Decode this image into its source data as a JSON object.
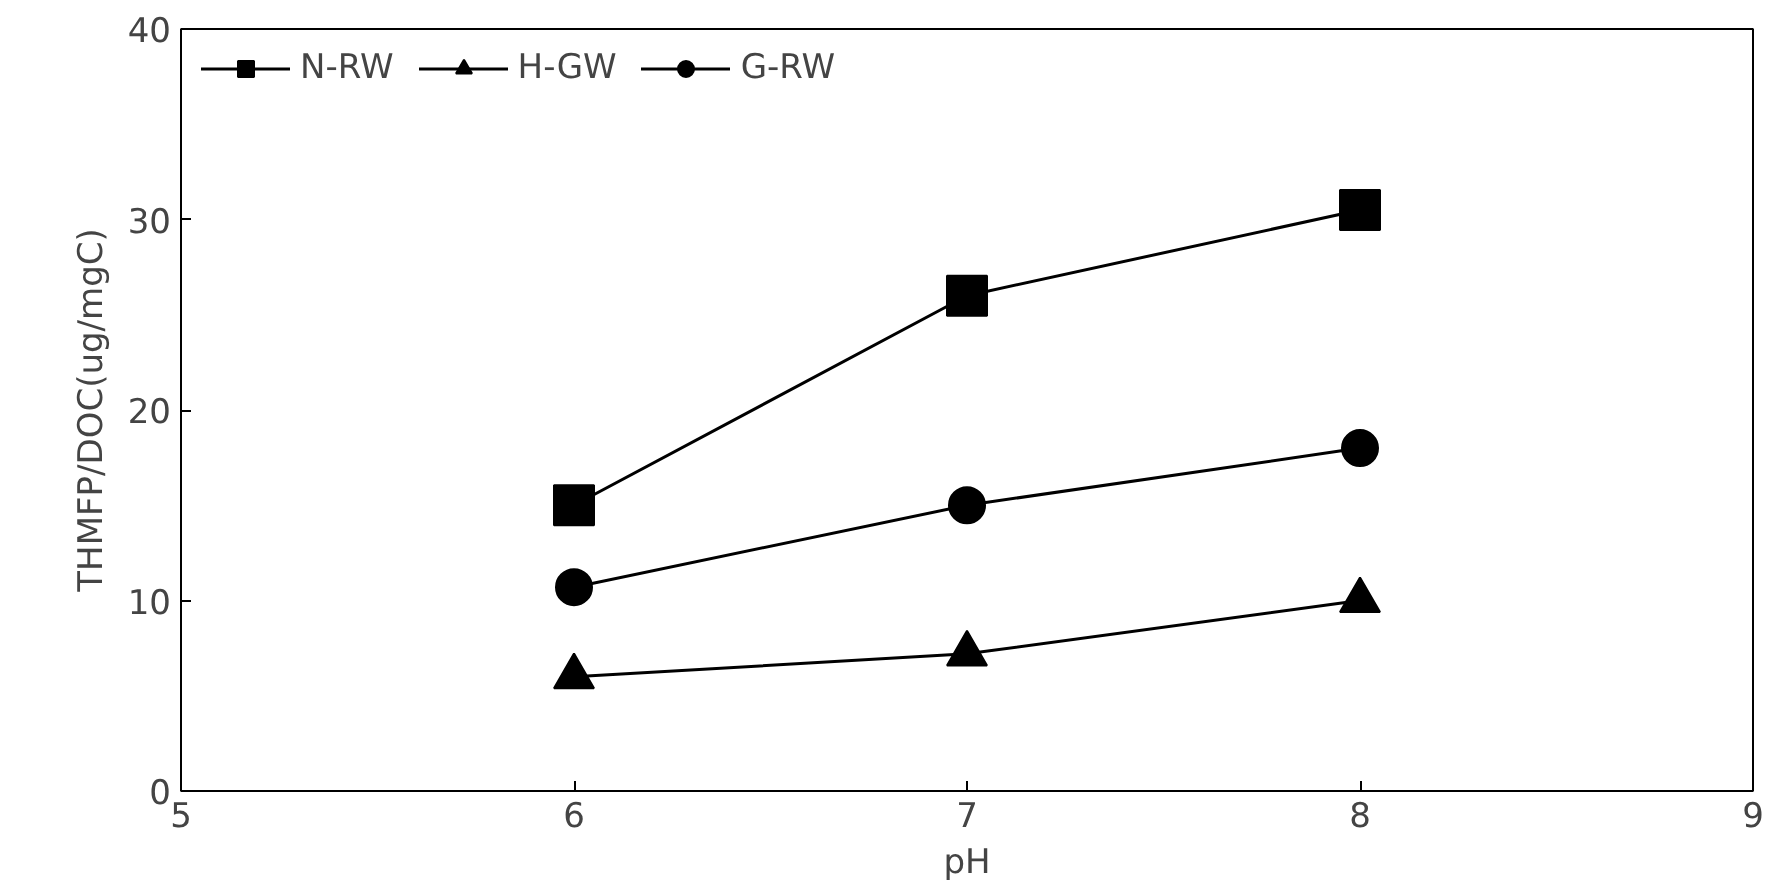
{
  "chart_data": {
    "type": "line",
    "xlabel": "pH",
    "ylabel": "THMFP/DOC(ug/mgC)",
    "x": [
      6,
      7,
      8
    ],
    "series": [
      {
        "name": "N-RW",
        "color": "#000000",
        "marker": "square",
        "values": [
          15,
          26,
          30.5
        ]
      },
      {
        "name": "H-GW",
        "color": "#000000",
        "marker": "triangle",
        "values": [
          6,
          7.2,
          10
        ]
      },
      {
        "name": "G-RW",
        "color": "#000000",
        "marker": "circle",
        "values": [
          10.7,
          15,
          18
        ]
      }
    ],
    "xlim": [
      5,
      9
    ],
    "xticks": [
      5,
      6,
      7,
      8,
      9
    ],
    "ylim": [
      0,
      40
    ],
    "yticks": [
      0,
      10,
      20,
      30,
      40
    ],
    "grid": false,
    "legend": "top left",
    "line_style": "solid"
  }
}
